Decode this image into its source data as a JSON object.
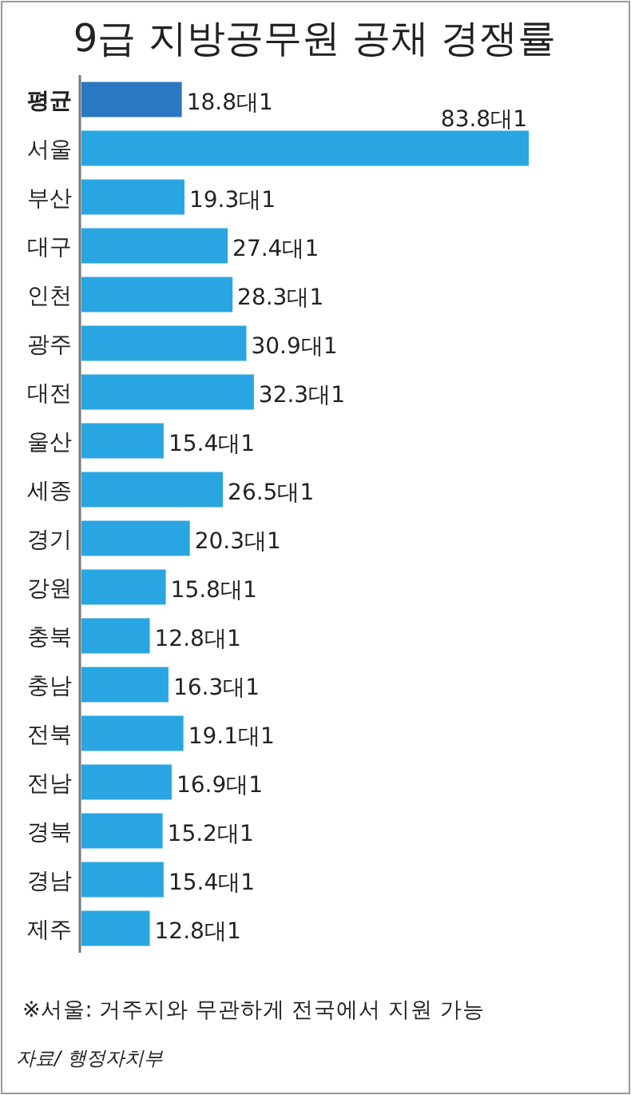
{
  "chart_data": {
    "type": "bar",
    "orientation": "horizontal",
    "title": "9급 지방공무원 공채 경쟁률",
    "categories": [
      "평균",
      "서울",
      "부산",
      "대구",
      "인천",
      "광주",
      "대전",
      "울산",
      "세종",
      "경기",
      "강원",
      "충북",
      "충남",
      "전북",
      "전남",
      "경북",
      "경남",
      "제주"
    ],
    "values": [
      18.8,
      83.8,
      19.3,
      27.4,
      28.3,
      30.9,
      32.3,
      15.4,
      26.5,
      20.3,
      15.8,
      12.8,
      16.3,
      19.1,
      16.9,
      15.2,
      15.4,
      12.8
    ],
    "colors": [
      "#2b78c2",
      "#29a6e1",
      "#29a6e1",
      "#29a6e1",
      "#29a6e1",
      "#29a6e1",
      "#29a6e1",
      "#29a6e1",
      "#29a6e1",
      "#29a6e1",
      "#29a6e1",
      "#29a6e1",
      "#29a6e1",
      "#29a6e1",
      "#29a6e1",
      "#29a6e1",
      "#29a6e1",
      "#29a6e1"
    ],
    "value_labels": [
      "18.8대1",
      "83.8대1",
      "19.3대1",
      "27.4대1",
      "28.3대1",
      "30.9대1",
      "32.3대1",
      "15.4대1",
      "26.5대1",
      "20.3대1",
      "15.8대1",
      "12.8대1",
      "16.3대1",
      "19.1대1",
      "16.9대1",
      "15.2대1",
      "15.4대1",
      "12.8대1"
    ],
    "annotations": [
      "※서울: 거주지와 무관하게 전국에서 지원 가능",
      "자료/ 행정자치부"
    ]
  }
}
